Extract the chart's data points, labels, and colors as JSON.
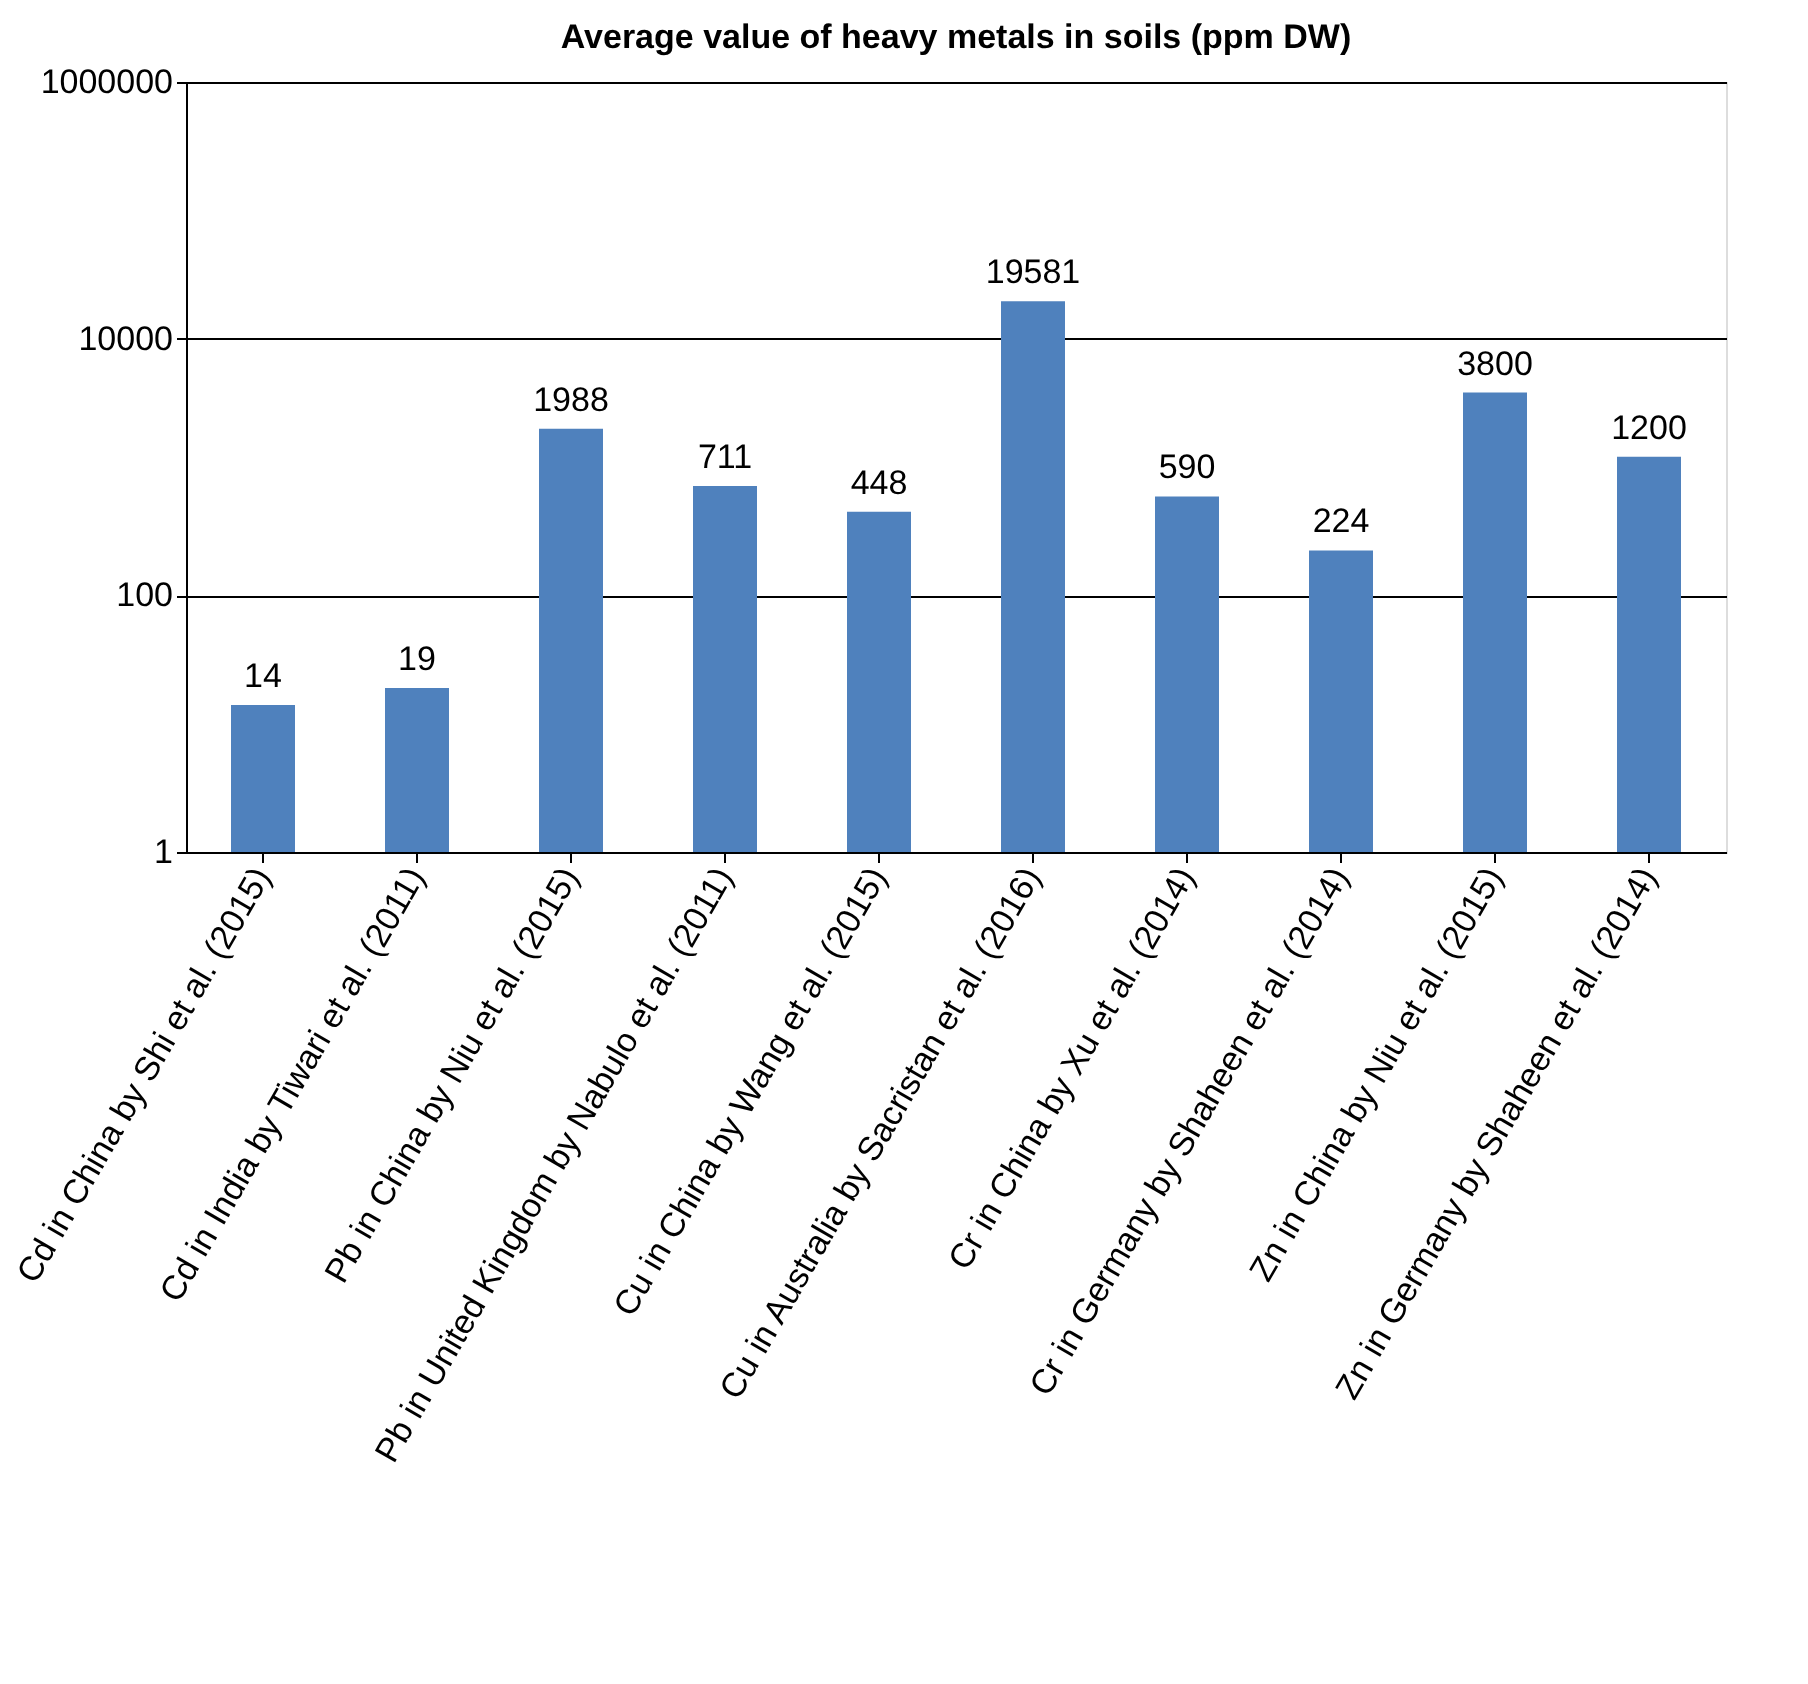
{
  "chart_data": {
    "type": "bar",
    "title": "Average value of heavy metals in soils (ppm DW)",
    "categories": [
      "Cd in China by Shi et al. (2015)",
      "Cd in India by Tiwari et al. (2011)",
      "Pb in China by Niu et al. (2015)",
      "Pb in United Kingdom by Nabulo et al. (2011)",
      "Cu in China by Wang et al. (2015)",
      "Cu in Australia by Sacristan et al. (2016)",
      "Cr in China by Xu et al. (2014)",
      "Cr in Germany by Shaheen et al. (2014)",
      "Zn in China by Niu et al. (2015)",
      "Zn in Germany by Shaheen et al. (2014)"
    ],
    "series": [
      {
        "color": "#4f81bd",
        "values": [
          14,
          19,
          1988,
          711,
          448,
          19581,
          590,
          224,
          3800,
          1200
        ]
      }
    ],
    "log": "y",
    "ylim": [
      1,
      1000000
    ],
    "yticks": [
      1,
      100,
      10000,
      1000000
    ],
    "grid": "y",
    "data_labels": true
  }
}
